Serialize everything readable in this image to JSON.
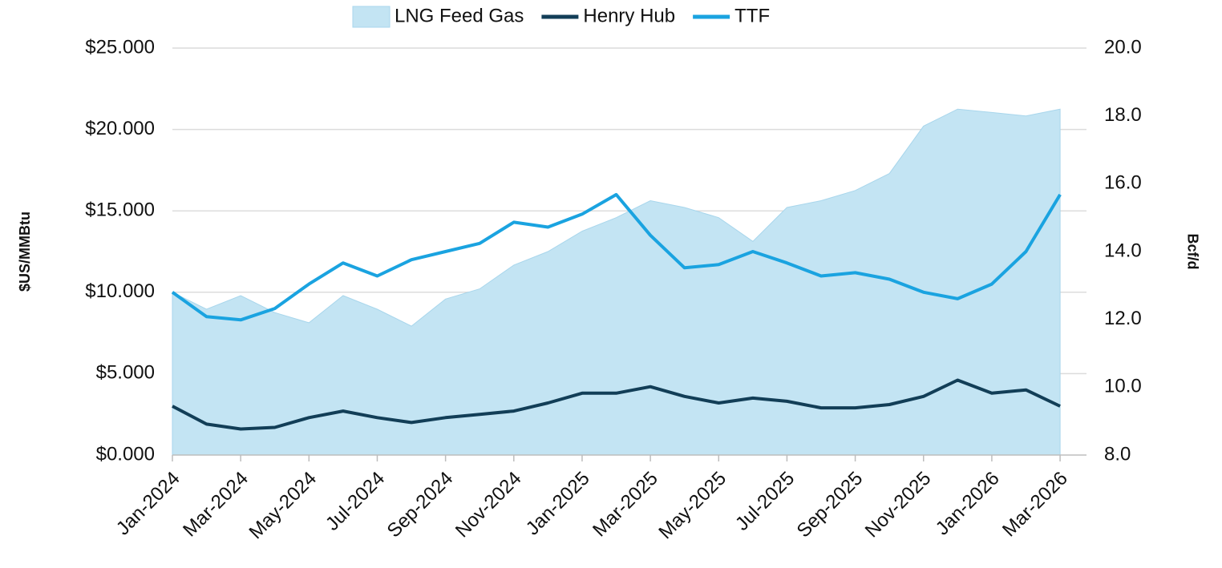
{
  "chart_data": {
    "type": "line",
    "y_label": "$US/MMBtu",
    "y2_label": "Bcf/d",
    "x": [
      "2024-01",
      "2024-02",
      "2024-03",
      "2024-04",
      "2024-05",
      "2024-06",
      "2024-07",
      "2024-08",
      "2024-09",
      "2024-10",
      "2024-11",
      "2024-12",
      "2025-01",
      "2025-02",
      "2025-03",
      "2025-04",
      "2025-05",
      "2025-06",
      "2025-07",
      "2025-08",
      "2025-09",
      "2025-10",
      "2025-11",
      "2025-12",
      "2026-01",
      "2026-02",
      "2026-03"
    ],
    "xticks": [
      {
        "value": "2024-01",
        "label": "Jan-2024"
      },
      {
        "value": "2024-03",
        "label": "Mar-2024"
      },
      {
        "value": "2024-05",
        "label": "May-2024"
      },
      {
        "value": "2024-07",
        "label": "Jul-2024"
      },
      {
        "value": "2024-09",
        "label": "Sep-2024"
      },
      {
        "value": "2024-11",
        "label": "Nov-2024"
      },
      {
        "value": "2025-01",
        "label": "Jan-2025"
      },
      {
        "value": "2025-03",
        "label": "Mar-2025"
      },
      {
        "value": "2025-05",
        "label": "May-2025"
      },
      {
        "value": "2025-07",
        "label": "Jul-2025"
      },
      {
        "value": "2025-09",
        "label": "Sep-2025"
      },
      {
        "value": "2025-11",
        "label": "Nov-2025"
      },
      {
        "value": "2026-01",
        "label": "Jan-2026"
      },
      {
        "value": "2026-03",
        "label": "Mar-2026"
      }
    ],
    "ylim": [
      0,
      25
    ],
    "yticks": [
      {
        "value": 0,
        "label": "$0.000"
      },
      {
        "value": 5,
        "label": "$5.000"
      },
      {
        "value": 10,
        "label": "$10.000"
      },
      {
        "value": 15,
        "label": "$15.000"
      },
      {
        "value": 20,
        "label": "$20.000"
      },
      {
        "value": 25,
        "label": "$25.000"
      }
    ],
    "y2lim": [
      8,
      20
    ],
    "y2ticks": [
      {
        "value": 8,
        "label": "8.0"
      },
      {
        "value": 10,
        "label": "10.0"
      },
      {
        "value": 12,
        "label": "12.0"
      },
      {
        "value": 14,
        "label": "14.0"
      },
      {
        "value": 16,
        "label": "16.0"
      },
      {
        "value": 18,
        "label": "18.0"
      },
      {
        "value": 20,
        "label": "20.0"
      }
    ],
    "grid": true,
    "legend": "top",
    "series": [
      {
        "name": "LNG Feed Gas",
        "kind": "area",
        "axis": "y2",
        "color": "#c3e4f3",
        "values": [
          12.8,
          12.3,
          12.7,
          12.2,
          11.9,
          12.7,
          12.3,
          11.8,
          12.6,
          12.9,
          13.6,
          14.0,
          14.6,
          15.0,
          15.5,
          15.3,
          15.0,
          14.3,
          15.3,
          15.5,
          15.8,
          16.3,
          17.7,
          18.2,
          18.1,
          18.0,
          18.2
        ]
      },
      {
        "name": "Henry Hub",
        "kind": "line",
        "color": "#123e57",
        "values": [
          3.0,
          1.9,
          1.6,
          1.7,
          2.3,
          2.7,
          2.3,
          2.0,
          2.3,
          2.5,
          2.7,
          3.2,
          3.8,
          3.8,
          4.2,
          3.6,
          3.2,
          3.5,
          3.3,
          2.9,
          2.9,
          3.1,
          3.6,
          4.6,
          3.8,
          4.0,
          3.0
        ]
      },
      {
        "name": "TTF",
        "kind": "line",
        "color": "#1aa3e0",
        "values": [
          10.0,
          8.5,
          8.3,
          9.0,
          10.5,
          11.8,
          11.0,
          12.0,
          12.5,
          13.0,
          14.3,
          14.0,
          14.8,
          16.0,
          13.5,
          11.5,
          11.7,
          12.5,
          11.8,
          11.0,
          11.2,
          10.8,
          10.0,
          9.6,
          10.5,
          12.5,
          16.0
        ]
      }
    ]
  }
}
